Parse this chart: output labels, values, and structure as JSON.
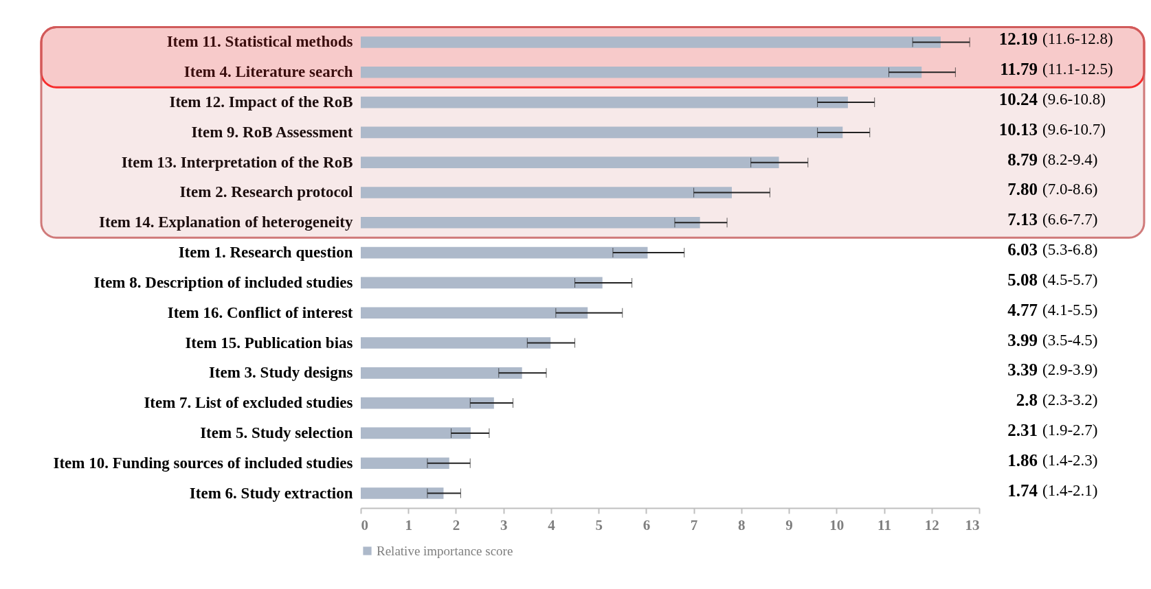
{
  "chart_data": {
    "type": "bar",
    "orientation": "horizontal",
    "legend": "bottom",
    "grid": false,
    "categories": [
      "Item 11. Statistical methods",
      "Item 4. Literature search",
      "Item 12. Impact of the RoB",
      "Item 9. RoB Assessment",
      "Item 13. Interpretation of the RoB",
      "Item 2. Research protocol",
      "Item 14. Explanation of heterogeneity",
      "Item 1. Research question",
      "Item 8. Description of included studies",
      "Item 16. Conflict of interest",
      "Item 15. Publication bias",
      "Item 3. Study designs",
      "Item 7. List of excluded studies",
      "Item 5. Study selection",
      "Item 10. Funding sources of included studies",
      "Item 6. Study extraction"
    ],
    "series": [
      {
        "name": "Relative importance score",
        "color": "#adb9ca",
        "values": [
          12.19,
          11.79,
          10.24,
          10.13,
          8.79,
          7.8,
          7.13,
          6.03,
          5.08,
          4.77,
          3.99,
          3.39,
          2.8,
          2.31,
          1.86,
          1.74
        ],
        "errors": [
          [
            11.6,
            12.8
          ],
          [
            11.1,
            12.5
          ],
          [
            9.6,
            10.8
          ],
          [
            9.6,
            10.7
          ],
          [
            8.2,
            9.4
          ],
          [
            7.0,
            8.6
          ],
          [
            6.6,
            7.7
          ],
          [
            5.3,
            6.8
          ],
          [
            4.5,
            5.7
          ],
          [
            4.1,
            5.5
          ],
          [
            3.5,
            4.5
          ],
          [
            2.9,
            3.9
          ],
          [
            2.3,
            3.2
          ],
          [
            1.9,
            2.7
          ],
          [
            1.4,
            2.3
          ],
          [
            1.4,
            2.1
          ]
        ],
        "value_labels": [
          "12.19 (11.6-12.8)",
          "11.79 (11.1-12.5)",
          "10.24 (9.6-10.8)",
          "10.13 (9.6-10.7)",
          "8.79 (8.2-9.4)",
          "7.80 (7.0-8.6)",
          "7.13 (6.6-7.7)",
          "6.03 (5.3-6.8)",
          "5.08 (4.5-5.7)",
          "4.77 (4.1-5.5)",
          "3.99 (3.5-4.5)",
          "3.39 (2.9-3.9)",
          "2.8 (2.3-3.2)",
          "2.31 (1.9-2.7)",
          "1.86 (1.4-2.3)",
          "1.74 (1.4-2.1)"
        ]
      }
    ],
    "xlim": [
      0,
      13
    ],
    "xticks": [
      0,
      1,
      2,
      3,
      4,
      5,
      6,
      7,
      8,
      9,
      10,
      11,
      12,
      13
    ],
    "bands": [
      {
        "axis": "y",
        "from": "Item 11. Statistical methods",
        "to": "Item 14. Explanation of heterogeneity",
        "color": "#c86464"
      },
      {
        "axis": "y",
        "from": "Item 11. Statistical methods",
        "to": "Item 4. Literature search",
        "color": "#ff0000"
      }
    ]
  }
}
